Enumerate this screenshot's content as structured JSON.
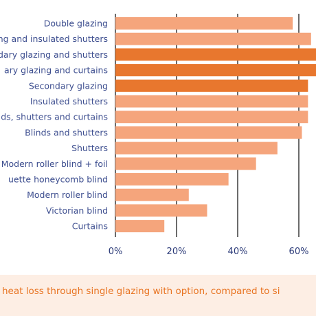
{
  "chart_data": {
    "type": "bar",
    "orientation": "horizontal",
    "categories": [
      "Double glazing",
      "ng and insulated shutters",
      "dary glazing and shutters",
      "ary glazing and curtains",
      "Secondary glazing",
      "Insulated shutters",
      "ds, shutters and curtains",
      "Blinds and shutters",
      "Shutters",
      "Modern roller blind + foil",
      "uette honeycomb blind",
      "Modern roller blind",
      "Victorian blind",
      "Curtains"
    ],
    "values": [
      58,
      64,
      66,
      66,
      63,
      63,
      63,
      61,
      53,
      46,
      37,
      24,
      30,
      16
    ],
    "highlighted": [
      false,
      false,
      true,
      true,
      true,
      false,
      false,
      false,
      false,
      false,
      false,
      false,
      false,
      false
    ],
    "xlim": [
      0,
      65
    ],
    "ticks": [
      "0%",
      "20%",
      "40%",
      "60%"
    ],
    "tick_values": [
      0,
      20,
      40,
      60
    ],
    "grid": true,
    "xlabel": "heat loss through single glazing with option, compared to si",
    "colors": {
      "bar": "#f5a57c",
      "bar_highlight": "#e8772e",
      "grid": "#3a3a3a",
      "label": "#3d4e8f",
      "caption": "#e87422"
    }
  }
}
